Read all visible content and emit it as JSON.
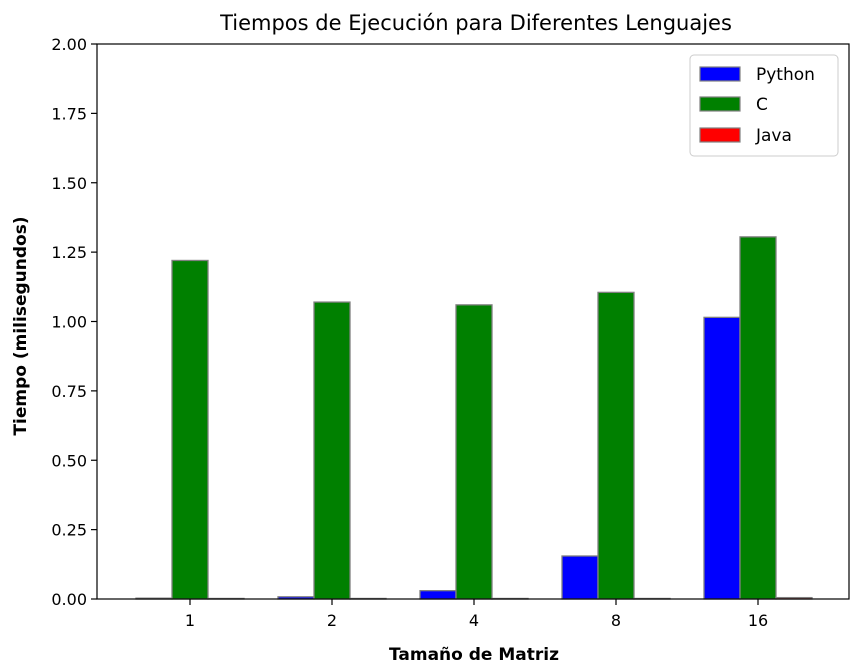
{
  "chart_data": {
    "type": "bar",
    "title": "Tiempos de Ejecución para Diferentes Lenguajes",
    "xlabel": "Tamaño de Matriz",
    "ylabel": "Tiempo (milisegundos)",
    "categories": [
      "1",
      "2",
      "4",
      "8",
      "16"
    ],
    "ylim": [
      0,
      2.0
    ],
    "yticks": [
      "0.00",
      "0.25",
      "0.50",
      "0.75",
      "1.00",
      "1.25",
      "1.50",
      "1.75",
      "2.00"
    ],
    "grid": false,
    "legend_position": "top-right",
    "series": [
      {
        "name": "Python",
        "color": "#0000ff",
        "values": [
          0.003,
          0.008,
          0.03,
          0.155,
          1.015
        ]
      },
      {
        "name": "C",
        "color": "#008000",
        "values": [
          1.22,
          1.07,
          1.06,
          1.105,
          1.305
        ]
      },
      {
        "name": "Java",
        "color": "#ff0000",
        "values": [
          0.002,
          0.002,
          0.002,
          0.002,
          0.005
        ]
      }
    ]
  }
}
